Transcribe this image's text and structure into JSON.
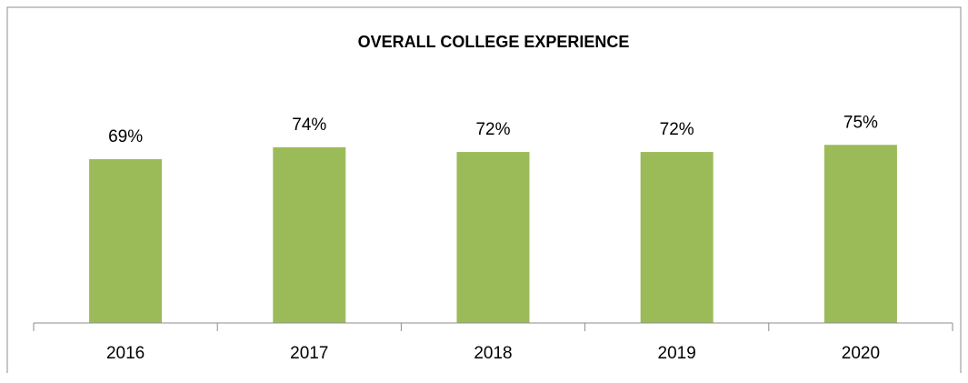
{
  "chart_data": {
    "type": "bar",
    "title": "OVERALL COLLEGE EXPERIENCE",
    "categories": [
      "2016",
      "2017",
      "2018",
      "2019",
      "2020"
    ],
    "values": [
      69,
      74,
      72,
      72,
      75
    ],
    "value_labels": [
      "69%",
      "74%",
      "72%",
      "72%",
      "75%"
    ],
    "color": "#9bbb59",
    "ylim": [
      0,
      100
    ]
  }
}
